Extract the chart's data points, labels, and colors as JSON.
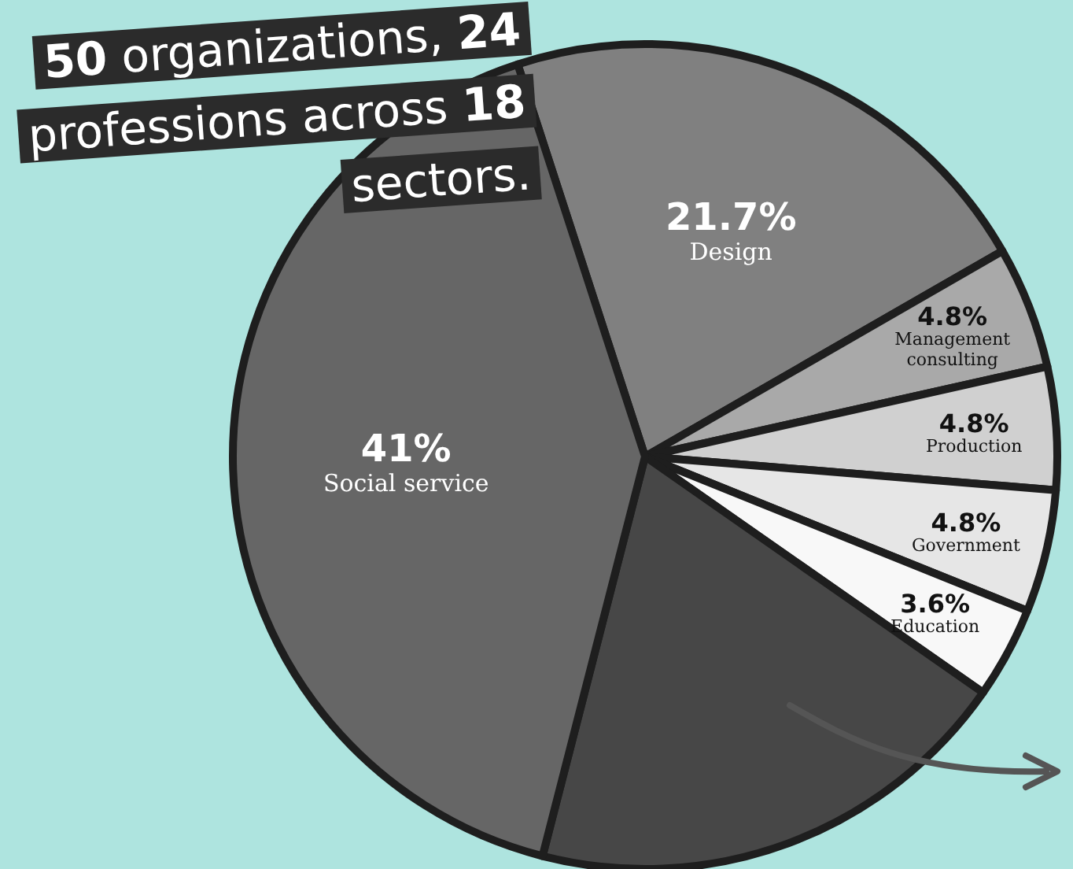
{
  "chart_data": {
    "type": "pie",
    "title": "50 organizations, 24 professions across 18 sectors.",
    "categories": [
      "Design",
      "Management consulting",
      "Production",
      "Government",
      "Education",
      null,
      "Social service"
    ],
    "values": [
      21.7,
      4.8,
      4.8,
      4.8,
      3.6,
      19.3,
      41
    ],
    "value_labels": [
      "21.7%",
      "4.8%",
      "4.8%",
      "4.8%",
      "3.6%",
      null,
      "41%"
    ],
    "colors": [
      "#808080",
      "#a9a9a9",
      "#d0d0d0",
      "#e6e6e6",
      "#f8f8f8",
      "#474747",
      "#666666"
    ]
  }
}
